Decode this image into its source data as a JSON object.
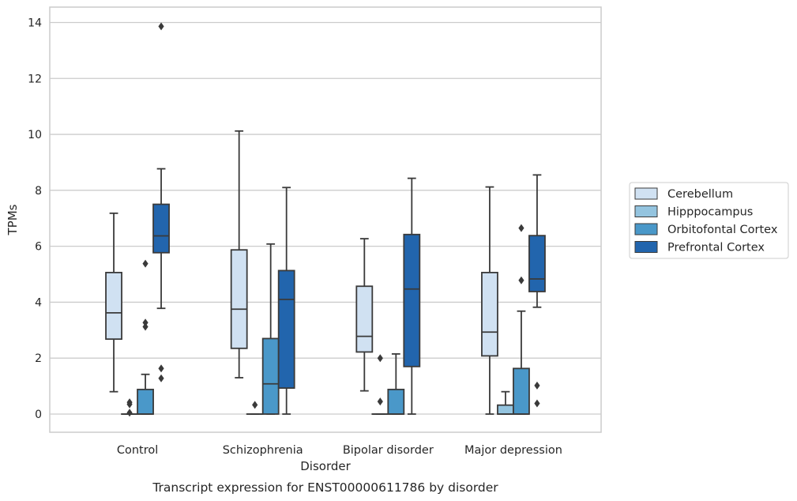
{
  "chart_data": {
    "type": "boxplot",
    "title": "Transcript expression for ENST00000611786 by disorder",
    "xlabel": "Disorder",
    "ylabel": "TPMs",
    "ylim": [
      -0.65,
      14.55
    ],
    "yticks": [
      0,
      2,
      4,
      6,
      8,
      10,
      12,
      14
    ],
    "grid": "horizontal",
    "legend_position": "right",
    "categories": [
      "Control",
      "Schizophrenia",
      "Bipolar disorder",
      "Major depression"
    ],
    "series": [
      {
        "name": "Cerebellum",
        "color": "#d0e1f2",
        "boxes": [
          {
            "whisker_low": 0.8,
            "q1": 2.68,
            "median": 3.62,
            "q3": 5.06,
            "whisker_high": 7.18,
            "outliers": []
          },
          {
            "whisker_low": 1.3,
            "q1": 2.35,
            "median": 3.75,
            "q3": 5.87,
            "whisker_high": 10.12,
            "outliers": []
          },
          {
            "whisker_low": 0.83,
            "q1": 2.22,
            "median": 2.78,
            "q3": 4.57,
            "whisker_high": 6.27,
            "outliers": []
          },
          {
            "whisker_low": 0.0,
            "q1": 2.08,
            "median": 2.93,
            "q3": 5.06,
            "whisker_high": 8.12,
            "outliers": []
          }
        ]
      },
      {
        "name": "Hipppocampus",
        "color": "#94c4df",
        "boxes": [
          {
            "whisker_low": 0.0,
            "q1": 0.0,
            "median": 0.0,
            "q3": 0.0,
            "whisker_high": 0.0,
            "outliers": [
              0.05,
              0.35,
              0.42
            ]
          },
          {
            "whisker_low": 0.0,
            "q1": 0.0,
            "median": 0.0,
            "q3": 0.0,
            "whisker_high": 0.0,
            "outliers": [
              0.33
            ]
          },
          {
            "whisker_low": 0.0,
            "q1": 0.0,
            "median": 0.0,
            "q3": 0.0,
            "whisker_high": 0.0,
            "outliers": [
              0.45,
              2.0
            ]
          },
          {
            "whisker_low": 0.0,
            "q1": 0.0,
            "median": 0.0,
            "q3": 0.32,
            "whisker_high": 0.8,
            "outliers": []
          }
        ]
      },
      {
        "name": "Orbitofontal Cortex",
        "color": "#4a98c9",
        "boxes": [
          {
            "whisker_low": 0.0,
            "q1": 0.0,
            "median": 0.0,
            "q3": 0.88,
            "whisker_high": 1.42,
            "outliers": [
              3.12,
              3.27,
              5.38
            ]
          },
          {
            "whisker_low": 0.0,
            "q1": 0.0,
            "median": 1.08,
            "q3": 2.7,
            "whisker_high": 6.08,
            "outliers": []
          },
          {
            "whisker_low": 0.0,
            "q1": 0.0,
            "median": 0.0,
            "q3": 0.88,
            "whisker_high": 2.15,
            "outliers": []
          },
          {
            "whisker_low": 0.0,
            "q1": 0.0,
            "median": 0.0,
            "q3": 1.63,
            "whisker_high": 3.68,
            "outliers": [
              4.78,
              6.65
            ]
          }
        ]
      },
      {
        "name": "Prefrontal Cortex",
        "color": "#2265ad",
        "boxes": [
          {
            "whisker_low": 3.78,
            "q1": 5.77,
            "median": 6.37,
            "q3": 7.5,
            "whisker_high": 8.77,
            "outliers": [
              1.28,
              1.63,
              13.86
            ]
          },
          {
            "whisker_low": 0.0,
            "q1": 0.93,
            "median": 4.1,
            "q3": 5.13,
            "whisker_high": 8.1,
            "outliers": []
          },
          {
            "whisker_low": 0.0,
            "q1": 1.7,
            "median": 4.47,
            "q3": 6.42,
            "whisker_high": 8.43,
            "outliers": []
          },
          {
            "whisker_low": 3.82,
            "q1": 4.38,
            "median": 4.83,
            "q3": 6.38,
            "whisker_high": 8.55,
            "outliers": [
              0.38,
              1.02
            ]
          }
        ]
      }
    ]
  }
}
